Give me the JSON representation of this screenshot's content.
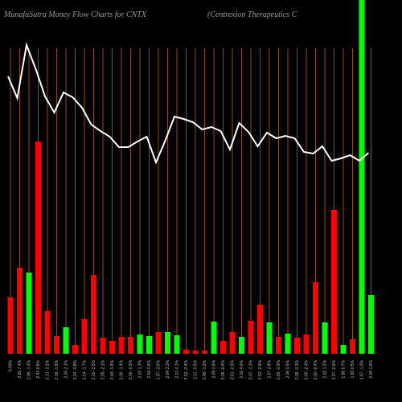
{
  "chart_data": {
    "type": "money-flow",
    "title": "MunafaSutra  Money Flow  Charts for CNTX",
    "subtitle": "(Centrexion  Therapeutics C",
    "categories": [
      "0.00%",
      "2.26 7.4%",
      "2.09 -1.4%",
      "2.43 6.8%",
      "2.21 -3.2%",
      "2.18 -1.9%",
      "2.26 2.1%",
      "2.24 -0.8%",
      "2.14 -1.7%",
      "2.10 -3.5%",
      "2.05 -2.1%",
      "2.04 -1.8%",
      "2.00 -1.4%",
      "2.00 -0.5%",
      "2.02 1.3%",
      "2.04 0.6%",
      "1.97 -2.6%",
      "2.04 3.3%",
      "2.13 4.1%",
      "2.12 -0.4%",
      "2.11 -0.5%",
      "2.08 -1.2%",
      "2.09 0.8%",
      "2.08 -0.6%",
      "2.01 -3.5%",
      "2.10 4.6%",
      "2.07 -1.3%",
      "2.02 -2.6%",
      "2.07 2.8%",
      "2.05 -0.9%",
      "2.06 0.5%",
      "2.05 -0.3%",
      "2.00 -2.4%",
      "2.00 -0.4%",
      "2.02 1.2%",
      "1.97 -2.6%",
      "1.98 0.7%",
      "1.99 0.5%",
      "1.97 -1.0%",
      "2.00 1.6%"
    ],
    "bar_values": [
      70,
      107,
      101,
      264,
      53,
      22,
      33,
      11,
      43,
      98,
      20,
      16,
      21,
      21,
      24,
      22,
      27,
      27,
      23,
      5,
      4,
      4,
      40,
      16,
      27,
      21,
      41,
      61,
      39,
      21,
      25,
      20,
      24,
      89,
      39,
      179,
      11,
      18,
      440,
      73
    ],
    "bar_colors": [
      "#ff0000",
      "#ff0000",
      "#00ff00",
      "#ff0000",
      "#ff0000",
      "#ff0000",
      "#00ff00",
      "#ff0000",
      "#ff0000",
      "#ff0000",
      "#ff0000",
      "#ff0000",
      "#ff0000",
      "#ff0000",
      "#00ff00",
      "#00ff00",
      "#ff0000",
      "#00ff00",
      "#00ff00",
      "#ff0000",
      "#ff0000",
      "#ff0000",
      "#00ff00",
      "#ff0000",
      "#ff0000",
      "#00ff00",
      "#ff0000",
      "#ff0000",
      "#00ff00",
      "#ff0000",
      "#00ff00",
      "#ff0000",
      "#ff0000",
      "#ff0000",
      "#00ff00",
      "#ff0000",
      "#00ff00",
      "#ff0000",
      "#00ff00",
      "#00ff00"
    ],
    "line_values": [
      345,
      318,
      384,
      354,
      320,
      300,
      325,
      319,
      306,
      285,
      277,
      270,
      257,
      257,
      264,
      270,
      238,
      265,
      295,
      292,
      288,
      279,
      282,
      277,
      254,
      287,
      276,
      258,
      275,
      268,
      271,
      268,
      251,
      249,
      258,
      240,
      243,
      247,
      240,
      250
    ],
    "line_color": "#ffffff",
    "grid_color": "#b8620e",
    "ylim": [
      0,
      440
    ]
  }
}
